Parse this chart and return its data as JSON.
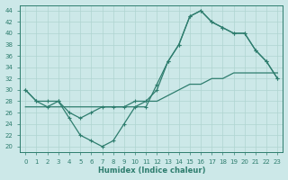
{
  "xlabel": "Humidex (Indice chaleur)",
  "bg_color": "#cce8e8",
  "line_color": "#2e7d6e",
  "xlim": [
    -0.5,
    23.5
  ],
  "ylim": [
    19,
    45
  ],
  "xticks": [
    0,
    1,
    2,
    3,
    4,
    5,
    6,
    7,
    8,
    9,
    10,
    11,
    12,
    13,
    14,
    15,
    16,
    17,
    18,
    19,
    20,
    21,
    22,
    23
  ],
  "yticks": [
    20,
    22,
    24,
    26,
    28,
    30,
    32,
    34,
    36,
    38,
    40,
    42,
    44
  ],
  "line1_x": [
    0,
    1,
    2,
    3,
    4,
    5,
    6,
    7,
    8,
    9,
    10,
    11,
    12,
    13,
    14,
    15,
    16,
    17,
    18,
    19,
    20,
    21,
    22,
    23
  ],
  "line1_y": [
    30,
    28,
    27,
    28,
    25,
    22,
    21,
    20,
    21,
    24,
    27,
    27,
    31,
    35,
    38,
    43,
    44,
    42,
    41,
    40,
    40,
    37,
    35,
    32
  ],
  "line2_x": [
    0,
    1,
    2,
    3,
    4,
    5,
    6,
    7,
    8,
    9,
    10,
    11,
    12,
    13,
    14,
    15,
    16,
    17,
    18,
    19,
    20,
    21,
    22,
    23
  ],
  "line2_y": [
    30,
    28,
    28,
    28,
    26,
    25,
    26,
    27,
    27,
    27,
    28,
    28,
    30,
    35,
    38,
    43,
    44,
    42,
    41,
    40,
    40,
    37,
    35,
    32
  ],
  "line3_x": [
    0,
    1,
    2,
    3,
    4,
    5,
    6,
    7,
    8,
    9,
    10,
    11,
    12,
    13,
    14,
    15,
    16,
    17,
    18,
    19,
    20,
    21,
    22,
    23
  ],
  "line3_y": [
    27,
    27,
    27,
    27,
    27,
    27,
    27,
    27,
    27,
    27,
    27,
    28,
    28,
    29,
    30,
    31,
    31,
    32,
    32,
    33,
    33,
    33,
    33,
    33
  ],
  "grid_color": "#afd4d0"
}
